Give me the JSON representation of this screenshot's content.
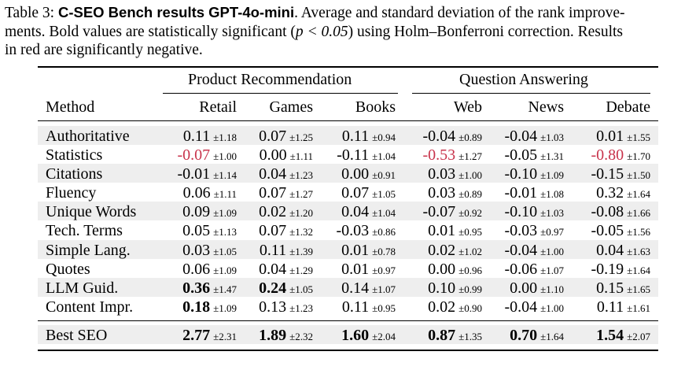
{
  "caption": {
    "label": "Table 3:",
    "title": "C-SEO Bench results GPT-4o-mini",
    "text_a": ". Average and standard deviation of the rank improve-",
    "line2_a": "ments. Bold values are statistically significant (",
    "p_expr": "p < 0.05",
    "line2_b": ") using Holm–Bonferroni correction. Results",
    "line3": "in red are significantly negative."
  },
  "table": {
    "group_headers": [
      "Product Recommendation",
      "Question Answering"
    ],
    "method_header": "Method",
    "columns": [
      "Retail",
      "Games",
      "Books",
      "Web",
      "News",
      "Debate"
    ],
    "rows": [
      {
        "method": "Authoritative",
        "cells": [
          {
            "mean": "0.11",
            "sd": "±1.18"
          },
          {
            "mean": "0.07",
            "sd": "±1.25"
          },
          {
            "mean": "0.11",
            "sd": "±0.94"
          },
          {
            "mean": "-0.04",
            "sd": "±0.89"
          },
          {
            "mean": "-0.04",
            "sd": "±1.03"
          },
          {
            "mean": "0.01",
            "sd": "±1.55"
          }
        ]
      },
      {
        "method": "Statistics",
        "cells": [
          {
            "mean": "-0.07",
            "sd": "±1.00",
            "style": "neg"
          },
          {
            "mean": "0.00",
            "sd": "±1.11"
          },
          {
            "mean": "-0.11",
            "sd": "±1.04"
          },
          {
            "mean": "-0.53",
            "sd": "±1.27",
            "style": "neg"
          },
          {
            "mean": "-0.05",
            "sd": "±1.31"
          },
          {
            "mean": "-0.80",
            "sd": "±1.70",
            "style": "neg"
          }
        ]
      },
      {
        "method": "Citations",
        "cells": [
          {
            "mean": "-0.01",
            "sd": "±1.14"
          },
          {
            "mean": "0.04",
            "sd": "±1.23"
          },
          {
            "mean": "0.00",
            "sd": "±0.91"
          },
          {
            "mean": "0.03",
            "sd": "±1.00"
          },
          {
            "mean": "-0.10",
            "sd": "±1.09"
          },
          {
            "mean": "-0.15",
            "sd": "±1.50"
          }
        ]
      },
      {
        "method": "Fluency",
        "cells": [
          {
            "mean": "0.06",
            "sd": "±1.11"
          },
          {
            "mean": "0.07",
            "sd": "±1.27"
          },
          {
            "mean": "0.07",
            "sd": "±1.05"
          },
          {
            "mean": "0.03",
            "sd": "±0.89"
          },
          {
            "mean": "-0.01",
            "sd": "±1.08"
          },
          {
            "mean": "0.32",
            "sd": "±1.64"
          }
        ]
      },
      {
        "method": "Unique Words",
        "cells": [
          {
            "mean": "0.09",
            "sd": "±1.09"
          },
          {
            "mean": "0.02",
            "sd": "±1.20"
          },
          {
            "mean": "0.04",
            "sd": "±1.04"
          },
          {
            "mean": "-0.07",
            "sd": "±0.92"
          },
          {
            "mean": "-0.10",
            "sd": "±1.03"
          },
          {
            "mean": "-0.08",
            "sd": "±1.66"
          }
        ]
      },
      {
        "method": "Tech. Terms",
        "cells": [
          {
            "mean": "0.05",
            "sd": "±1.13"
          },
          {
            "mean": "0.07",
            "sd": "±1.32"
          },
          {
            "mean": "-0.03",
            "sd": "±0.86"
          },
          {
            "mean": "0.01",
            "sd": "±0.95"
          },
          {
            "mean": "-0.03",
            "sd": "±0.97"
          },
          {
            "mean": "-0.05",
            "sd": "±1.56"
          }
        ]
      },
      {
        "method": "Simple Lang.",
        "cells": [
          {
            "mean": "0.03",
            "sd": "±1.05"
          },
          {
            "mean": "0.11",
            "sd": "±1.39"
          },
          {
            "mean": "0.01",
            "sd": "±0.78"
          },
          {
            "mean": "0.02",
            "sd": "±1.02"
          },
          {
            "mean": "-0.04",
            "sd": "±1.00"
          },
          {
            "mean": "0.04",
            "sd": "±1.63"
          }
        ]
      },
      {
        "method": "Quotes",
        "cells": [
          {
            "mean": "0.06",
            "sd": "±1.09"
          },
          {
            "mean": "0.04",
            "sd": "±1.29"
          },
          {
            "mean": "0.01",
            "sd": "±0.97"
          },
          {
            "mean": "0.00",
            "sd": "±0.96"
          },
          {
            "mean": "-0.06",
            "sd": "±1.07"
          },
          {
            "mean": "-0.19",
            "sd": "±1.64"
          }
        ]
      },
      {
        "method": "LLM Guid.",
        "cells": [
          {
            "mean": "0.36",
            "sd": "±1.47",
            "style": "bold"
          },
          {
            "mean": "0.24",
            "sd": "±1.05",
            "style": "bold"
          },
          {
            "mean": "0.14",
            "sd": "±1.07"
          },
          {
            "mean": "0.10",
            "sd": "±0.99"
          },
          {
            "mean": "0.00",
            "sd": "±1.10"
          },
          {
            "mean": "0.15",
            "sd": "±1.65"
          }
        ]
      },
      {
        "method": "Content Impr.",
        "cells": [
          {
            "mean": "0.18",
            "sd": "±1.09",
            "style": "bold"
          },
          {
            "mean": "0.13",
            "sd": "±1.23"
          },
          {
            "mean": "0.11",
            "sd": "±0.95"
          },
          {
            "mean": "0.02",
            "sd": "±0.90"
          },
          {
            "mean": "-0.04",
            "sd": "±1.00"
          },
          {
            "mean": "0.11",
            "sd": "±1.61"
          }
        ]
      },
      {
        "method": "Best SEO",
        "cells": [
          {
            "mean": "2.77",
            "sd": "±2.31",
            "style": "bold"
          },
          {
            "mean": "1.89",
            "sd": "±2.32",
            "style": "bold"
          },
          {
            "mean": "1.60",
            "sd": "±2.04",
            "style": "bold"
          },
          {
            "mean": "0.87",
            "sd": "±1.35",
            "style": "bold"
          },
          {
            "mean": "0.70",
            "sd": "±1.64",
            "style": "bold"
          },
          {
            "mean": "1.54",
            "sd": "±2.07",
            "style": "bold"
          }
        ]
      }
    ]
  }
}
